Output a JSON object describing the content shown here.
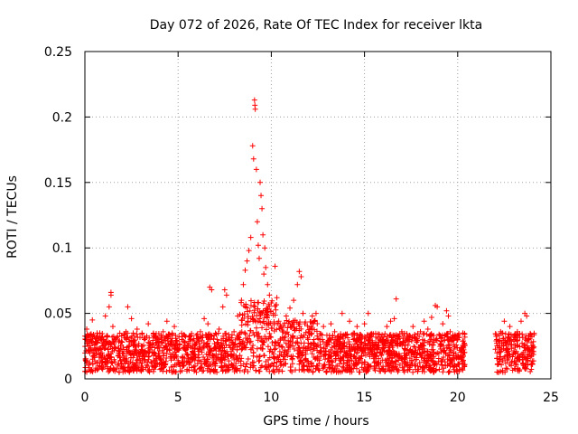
{
  "chart_data": {
    "type": "scatter",
    "title": "Day 072 of 2026, Rate Of TEC Index for receiver lkta",
    "xlabel": "GPS time / hours",
    "ylabel": "ROTI / TECUs",
    "xlim": [
      0,
      25
    ],
    "ylim": [
      0,
      0.25
    ],
    "xticks": [
      0,
      5,
      10,
      15,
      20,
      25
    ],
    "yticks": [
      0,
      0.05,
      0.1,
      0.15,
      0.2,
      0.25
    ],
    "xtick_labels": [
      "0",
      "5",
      "10",
      "15",
      "20",
      "25"
    ],
    "ytick_labels": [
      "0",
      "0.05",
      "0.1",
      "0.15",
      "0.2",
      "0.25"
    ],
    "grid": true,
    "marker": "+",
    "color": "#ff0000",
    "series": [
      {
        "name": "ROTI",
        "points": [
          [
            0.1,
            0.038
          ],
          [
            0.1,
            0.012
          ],
          [
            0.2,
            0.025
          ],
          [
            0.3,
            0.03
          ],
          [
            0.4,
            0.045
          ],
          [
            0.5,
            0.018
          ],
          [
            0.6,
            0.022
          ],
          [
            0.8,
            0.035
          ],
          [
            0.9,
            0.016
          ],
          [
            1.0,
            0.03
          ],
          [
            1.1,
            0.048
          ],
          [
            1.2,
            0.014
          ],
          [
            1.3,
            0.055
          ],
          [
            1.4,
            0.066
          ],
          [
            1.4,
            0.064
          ],
          [
            1.5,
            0.04
          ],
          [
            1.6,
            0.024
          ],
          [
            1.8,
            0.018
          ],
          [
            2.0,
            0.028
          ],
          [
            2.2,
            0.036
          ],
          [
            2.3,
            0.055
          ],
          [
            2.4,
            0.02
          ],
          [
            2.5,
            0.046
          ],
          [
            2.7,
            0.026
          ],
          [
            2.8,
            0.038
          ],
          [
            3.0,
            0.014
          ],
          [
            3.2,
            0.03
          ],
          [
            3.4,
            0.042
          ],
          [
            3.6,
            0.02
          ],
          [
            3.8,
            0.032
          ],
          [
            4.0,
            0.016
          ],
          [
            4.2,
            0.036
          ],
          [
            4.4,
            0.044
          ],
          [
            4.6,
            0.026
          ],
          [
            4.8,
            0.04
          ],
          [
            5.0,
            0.014
          ],
          [
            5.2,
            0.03
          ],
          [
            5.4,
            0.022
          ],
          [
            5.6,
            0.012
          ],
          [
            5.8,
            0.02
          ],
          [
            6.0,
            0.028
          ],
          [
            6.2,
            0.036
          ],
          [
            6.4,
            0.046
          ],
          [
            6.6,
            0.042
          ],
          [
            6.7,
            0.07
          ],
          [
            6.8,
            0.068
          ],
          [
            7.0,
            0.024
          ],
          [
            7.2,
            0.038
          ],
          [
            7.4,
            0.055
          ],
          [
            7.5,
            0.068
          ],
          [
            7.6,
            0.064
          ],
          [
            7.7,
            0.03
          ],
          [
            7.8,
            0.024
          ],
          [
            8.0,
            0.036
          ],
          [
            8.2,
            0.048
          ],
          [
            8.4,
            0.06
          ],
          [
            8.5,
            0.072
          ],
          [
            8.6,
            0.083
          ],
          [
            8.7,
            0.09
          ],
          [
            8.8,
            0.098
          ],
          [
            8.9,
            0.108
          ],
          [
            9.0,
            0.178
          ],
          [
            9.05,
            0.168
          ],
          [
            9.1,
            0.213
          ],
          [
            9.12,
            0.209
          ],
          [
            9.14,
            0.206
          ],
          [
            9.2,
            0.16
          ],
          [
            9.25,
            0.12
          ],
          [
            9.3,
            0.102
          ],
          [
            9.35,
            0.092
          ],
          [
            9.4,
            0.15
          ],
          [
            9.45,
            0.14
          ],
          [
            9.5,
            0.13
          ],
          [
            9.55,
            0.11
          ],
          [
            9.6,
            0.08
          ],
          [
            9.65,
            0.1
          ],
          [
            9.7,
            0.085
          ],
          [
            9.8,
            0.072
          ],
          [
            9.9,
            0.064
          ],
          [
            10.0,
            0.058
          ],
          [
            10.1,
            0.05
          ],
          [
            10.2,
            0.086
          ],
          [
            10.3,
            0.062
          ],
          [
            10.4,
            0.044
          ],
          [
            10.5,
            0.04
          ],
          [
            10.6,
            0.036
          ],
          [
            10.8,
            0.048
          ],
          [
            11.0,
            0.054
          ],
          [
            11.2,
            0.06
          ],
          [
            11.4,
            0.072
          ],
          [
            11.5,
            0.082
          ],
          [
            11.6,
            0.078
          ],
          [
            11.7,
            0.05
          ],
          [
            11.8,
            0.042
          ],
          [
            12.0,
            0.036
          ],
          [
            12.2,
            0.048
          ],
          [
            12.4,
            0.05
          ],
          [
            12.6,
            0.03
          ],
          [
            12.8,
            0.04
          ],
          [
            13.0,
            0.026
          ],
          [
            13.2,
            0.042
          ],
          [
            13.4,
            0.036
          ],
          [
            13.6,
            0.03
          ],
          [
            13.8,
            0.05
          ],
          [
            14.0,
            0.034
          ],
          [
            14.2,
            0.044
          ],
          [
            14.4,
            0.03
          ],
          [
            14.6,
            0.04
          ],
          [
            14.8,
            0.028
          ],
          [
            15.0,
            0.042
          ],
          [
            15.2,
            0.05
          ],
          [
            15.4,
            0.034
          ],
          [
            15.6,
            0.028
          ],
          [
            15.8,
            0.034
          ],
          [
            16.0,
            0.03
          ],
          [
            16.2,
            0.04
          ],
          [
            16.4,
            0.044
          ],
          [
            16.6,
            0.046
          ],
          [
            16.7,
            0.061
          ],
          [
            16.8,
            0.032
          ],
          [
            17.0,
            0.036
          ],
          [
            17.2,
            0.026
          ],
          [
            17.4,
            0.03
          ],
          [
            17.6,
            0.04
          ],
          [
            17.8,
            0.028
          ],
          [
            18.0,
            0.036
          ],
          [
            18.2,
            0.044
          ],
          [
            18.4,
            0.038
          ],
          [
            18.6,
            0.047
          ],
          [
            18.8,
            0.056
          ],
          [
            18.9,
            0.055
          ],
          [
            19.0,
            0.034
          ],
          [
            19.2,
            0.042
          ],
          [
            19.4,
            0.052
          ],
          [
            19.5,
            0.048
          ],
          [
            19.6,
            0.036
          ],
          [
            19.8,
            0.026
          ],
          [
            20.0,
            0.03
          ],
          [
            20.2,
            0.024
          ],
          [
            20.3,
            0.018
          ],
          [
            22.1,
            0.03
          ],
          [
            22.2,
            0.02
          ],
          [
            22.3,
            0.036
          ],
          [
            22.5,
            0.044
          ],
          [
            22.6,
            0.026
          ],
          [
            22.8,
            0.04
          ],
          [
            23.0,
            0.03
          ],
          [
            23.2,
            0.036
          ],
          [
            23.4,
            0.044
          ],
          [
            23.6,
            0.05
          ],
          [
            23.7,
            0.048
          ],
          [
            23.8,
            0.03
          ],
          [
            23.9,
            0.034
          ],
          [
            24.0,
            0.024
          ]
        ]
      }
    ]
  }
}
